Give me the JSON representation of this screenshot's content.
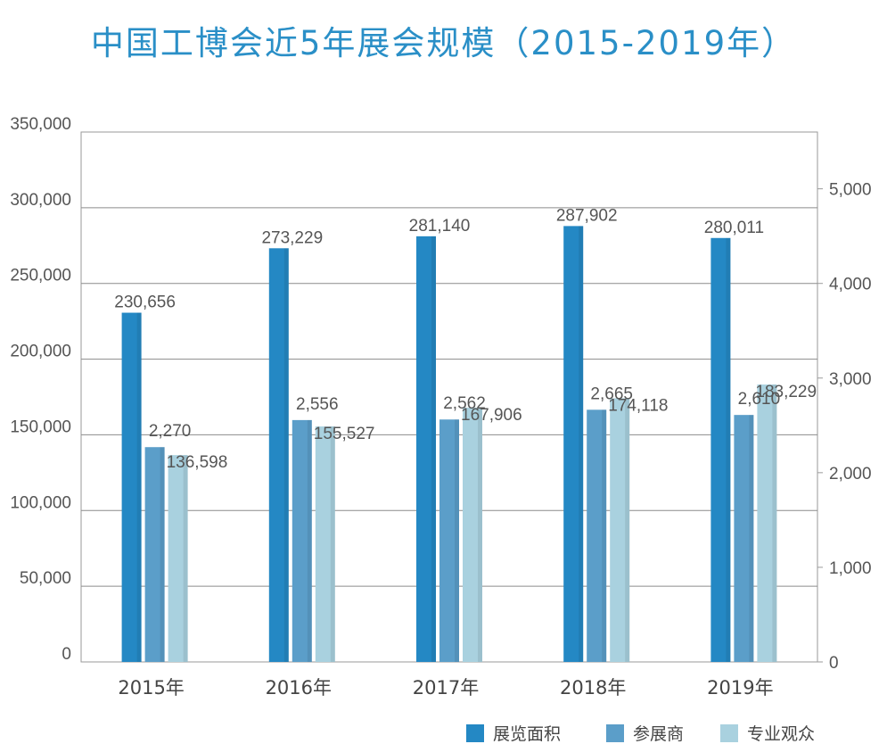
{
  "title": "中国工博会近5年展会规模（2015-2019年）",
  "chart_data": {
    "type": "bar",
    "title": "中国工博会近5年展会规模（2015-2019年）",
    "categories": [
      "2015年",
      "2016年",
      "2017年",
      "2018年",
      "2019年"
    ],
    "left_axis": {
      "ylim": [
        0,
        350000
      ],
      "ticks": [
        "0",
        "50,000",
        "100,000",
        "150,000",
        "200,000",
        "250,000",
        "300,000",
        "350,000"
      ],
      "tick_values": [
        0,
        50000,
        100000,
        150000,
        200000,
        250000,
        300000,
        350000
      ]
    },
    "right_axis": {
      "ylim": [
        0,
        5600
      ],
      "ticks": [
        "0",
        "1,000",
        "2,000",
        "3,000",
        "4,000",
        "5,000"
      ],
      "tick_values": [
        0,
        1000,
        2000,
        3000,
        4000,
        5000
      ]
    },
    "grid": true,
    "legend_position": "bottom-right",
    "series": [
      {
        "name": "展览面积",
        "axis": "left",
        "color": "#2488c4",
        "values": [
          230656,
          273229,
          281140,
          287902,
          280011
        ],
        "labels": [
          "230,656",
          "273,229",
          "281,140",
          "287,902",
          "280,011"
        ]
      },
      {
        "name": "参展商",
        "axis": "right",
        "color": "#5b9ec9",
        "values": [
          2270,
          2556,
          2562,
          2665,
          2610
        ],
        "labels": [
          "2,270",
          "2,556",
          "2,562",
          "2,665",
          "2,610"
        ]
      },
      {
        "name": "专业观众",
        "axis": "left",
        "color": "#a9d1df",
        "values": [
          136598,
          155527,
          167906,
          174118,
          183229
        ],
        "labels": [
          "136,598",
          "155,527",
          "167,906",
          "174,118",
          "183,229"
        ]
      }
    ]
  }
}
